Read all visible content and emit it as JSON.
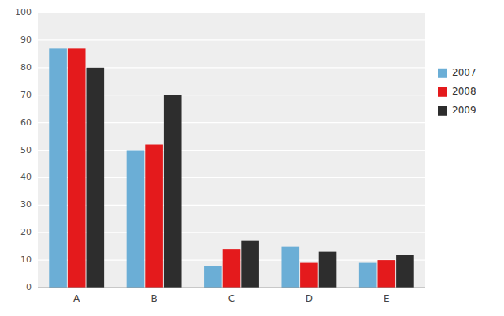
{
  "chart_data": {
    "type": "bar",
    "categories": [
      "A",
      "B",
      "C",
      "D",
      "E"
    ],
    "series": [
      {
        "name": "2007",
        "color": "#6baed6",
        "values": [
          87,
          50,
          8,
          15,
          9
        ]
      },
      {
        "name": "2008",
        "color": "#e41a1c",
        "values": [
          87,
          52,
          14,
          9,
          10
        ]
      },
      {
        "name": "2009",
        "color": "#2d2d2d",
        "values": [
          80,
          70,
          17,
          13,
          12
        ]
      }
    ],
    "ylim": [
      0,
      100
    ],
    "yticks": [
      0,
      10,
      20,
      30,
      40,
      50,
      60,
      70,
      80,
      90,
      100
    ],
    "grid": true,
    "legend": "right"
  }
}
